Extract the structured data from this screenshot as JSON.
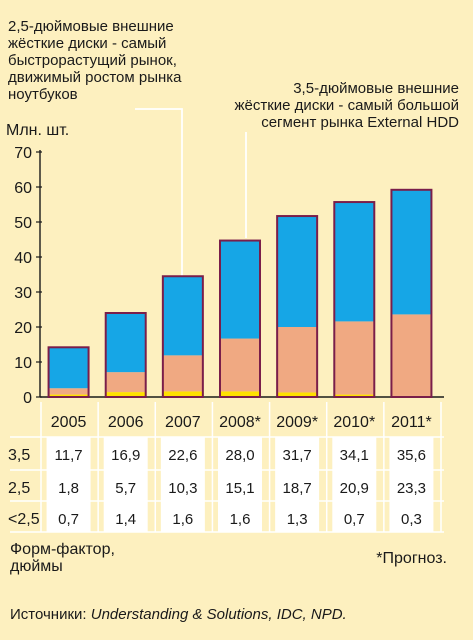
{
  "annotations": {
    "left": [
      "2,5-дюймовые внешние",
      "жёсткие диски - самый",
      "быстрорастущий рынок,",
      "движимый ростом рынка",
      "ноутбуков"
    ],
    "right": [
      "3,5-дюймовые внешние",
      "жёсткие диски - самый большой",
      "сегмент рынка External HDD"
    ]
  },
  "y_unit": "Млн. шт.",
  "colors": {
    "bg": "#fdf0bf",
    "s35": "#16a6e6",
    "s25": "#f0a982",
    "s_small": "#ffe000",
    "frame": "#7a1e4a"
  },
  "chart_data": {
    "type": "bar",
    "stacked": true,
    "categories": [
      "2005",
      "2006",
      "2007",
      "2008*",
      "2009*",
      "2010*",
      "2011*"
    ],
    "series": [
      {
        "name": "<2,5",
        "values": [
          0.7,
          1.4,
          1.6,
          1.6,
          1.3,
          0.7,
          0.3
        ]
      },
      {
        "name": "2,5",
        "values": [
          1.8,
          5.7,
          10.3,
          15.1,
          18.7,
          20.9,
          23.3
        ]
      },
      {
        "name": "3,5",
        "values": [
          11.7,
          16.9,
          22.6,
          28.0,
          31.7,
          34.1,
          35.6
        ]
      }
    ],
    "ylim": [
      0,
      70
    ],
    "yticks": [
      0,
      10,
      20,
      30,
      40,
      50,
      60,
      70
    ],
    "grid": false
  },
  "table": {
    "rows": [
      {
        "label": "3,5",
        "cells": [
          "11,7",
          "16,9",
          "22,6",
          "28,0",
          "31,7",
          "34,1",
          "35,6"
        ]
      },
      {
        "label": "2,5",
        "cells": [
          "1,8",
          "5,7",
          "10,3",
          "15,1",
          "18,7",
          "20,9",
          "23,3"
        ]
      },
      {
        "label": "<2,5",
        "cells": [
          "0,7",
          "1,4",
          "1,6",
          "1,6",
          "1,3",
          "0,7",
          "0,3"
        ]
      }
    ]
  },
  "footer": {
    "label": [
      "Форм-фактор,",
      "дюймы"
    ],
    "note": "*Прогноз.",
    "source_prefix": "Источники: ",
    "source_italic": "Understanding & Solutions, IDC, NPD."
  }
}
